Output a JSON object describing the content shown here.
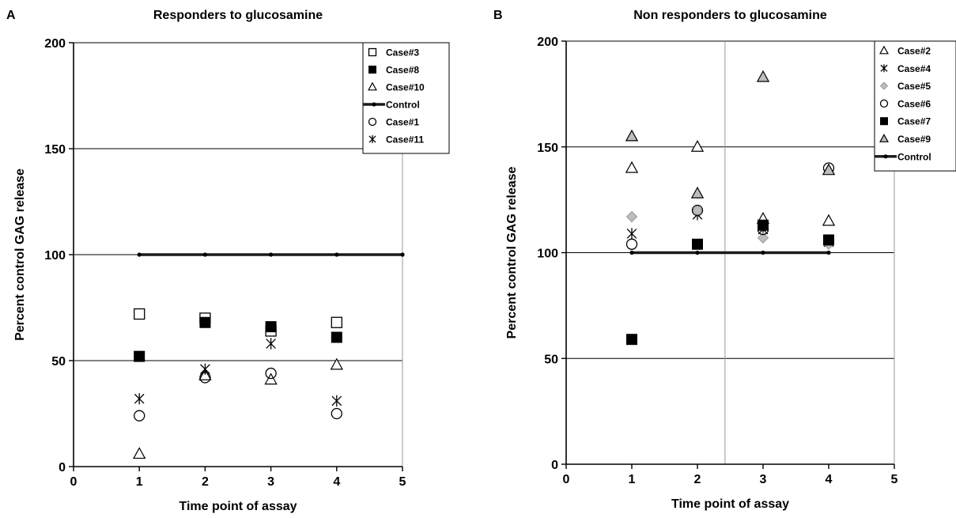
{
  "chart_data": [
    {
      "type": "scatter",
      "panel": "A",
      "title": "Responders to glucosamine",
      "xlabel": "Time point of assay",
      "ylabel": "Percent control GAG release",
      "xlim": [
        0,
        5
      ],
      "ylim": [
        0,
        200
      ],
      "xticks": [
        "0",
        "1",
        "2",
        "3",
        "4",
        "5"
      ],
      "yticks": [
        "0",
        "50",
        "100",
        "150",
        "200"
      ],
      "grid": "horizontal",
      "legend_position": "top-right",
      "series": [
        {
          "name": "Case#3",
          "marker": "open-square",
          "points": [
            [
              1,
              72
            ],
            [
              2,
              70
            ],
            [
              3,
              64
            ],
            [
              4,
              68
            ]
          ]
        },
        {
          "name": "Case#8",
          "marker": "filled-square",
          "points": [
            [
              1,
              52
            ],
            [
              2,
              68
            ],
            [
              3,
              66
            ],
            [
              4,
              61
            ]
          ]
        },
        {
          "name": "Case#10",
          "marker": "open-triangle",
          "points": [
            [
              1,
              6
            ],
            [
              2,
              43
            ],
            [
              3,
              41
            ],
            [
              4,
              48
            ]
          ]
        },
        {
          "name": "Control",
          "marker": "line",
          "points": [
            [
              1,
              100
            ],
            [
              2,
              100
            ],
            [
              3,
              100
            ],
            [
              4,
              100
            ],
            [
              5,
              100
            ]
          ]
        },
        {
          "name": "Case#1",
          "marker": "open-circle",
          "points": [
            [
              1,
              24
            ],
            [
              2,
              42
            ],
            [
              3,
              44
            ],
            [
              4,
              25
            ]
          ]
        },
        {
          "name": "Case#11",
          "marker": "asterisk",
          "points": [
            [
              1,
              32
            ],
            [
              2,
              46
            ],
            [
              3,
              58
            ],
            [
              4,
              31
            ]
          ]
        }
      ]
    },
    {
      "type": "scatter",
      "panel": "B",
      "title": "Non responders to glucosamine",
      "xlabel": "Time point of assay",
      "ylabel": "Percent control GAG release",
      "xlim": [
        0,
        5
      ],
      "ylim": [
        0,
        200
      ],
      "xticks": [
        "0",
        "1",
        "2",
        "3",
        "4",
        "5"
      ],
      "yticks": [
        "0",
        "50",
        "100",
        "150",
        "200"
      ],
      "grid": "horizontal",
      "legend_position": "top-right",
      "series": [
        {
          "name": "Case#2",
          "marker": "open-triangle",
          "points": [
            [
              1,
              140
            ],
            [
              2,
              150
            ],
            [
              3,
              116
            ],
            [
              4,
              115
            ]
          ]
        },
        {
          "name": "Case#4",
          "marker": "asterisk",
          "points": [
            [
              1,
              109
            ],
            [
              2,
              118
            ],
            [
              3,
              111
            ],
            [
              4,
              105
            ]
          ]
        },
        {
          "name": "Case#5",
          "marker": "gray-diamond",
          "points": [
            [
              1,
              117
            ],
            [
              2,
              120
            ],
            [
              3,
              107
            ],
            [
              4,
              104
            ]
          ]
        },
        {
          "name": "Case#6",
          "marker": "open-circle",
          "points": [
            [
              1,
              104
            ],
            [
              2,
              120
            ],
            [
              3,
              111
            ],
            [
              4,
              140
            ]
          ]
        },
        {
          "name": "Case#7",
          "marker": "filled-square",
          "points": [
            [
              1,
              59
            ],
            [
              2,
              104
            ],
            [
              3,
              113
            ],
            [
              4,
              106
            ]
          ]
        },
        {
          "name": "Case#9",
          "marker": "gray-triangle",
          "points": [
            [
              1,
              155
            ],
            [
              2,
              128
            ],
            [
              3,
              183
            ],
            [
              4,
              139
            ]
          ]
        },
        {
          "name": "Control",
          "marker": "line",
          "points": [
            [
              1,
              100
            ],
            [
              2,
              100
            ],
            [
              3,
              100
            ],
            [
              4,
              100
            ]
          ]
        }
      ]
    }
  ]
}
